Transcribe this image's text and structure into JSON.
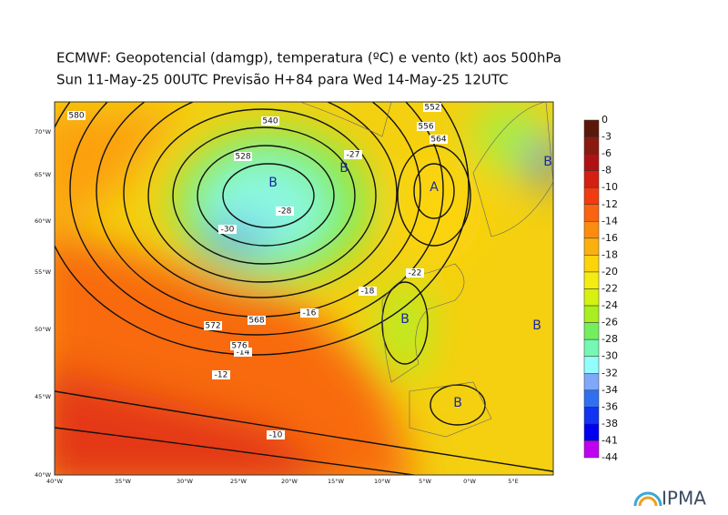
{
  "header": {
    "title_line1": "ECMWF:  Geopotencial (damgp), temperatura (ºC) e vento (kt) aos 500hPa",
    "title_line2": "Sun 11-May-25 00UTC Previsão H+84 para Wed 14-May-25 12UTC"
  },
  "colorbar": {
    "levels": [
      0,
      -3,
      -6,
      -8,
      -10,
      -12,
      -14,
      -16,
      -18,
      -20,
      -22,
      -24,
      -26,
      -28,
      -30,
      -32,
      -34,
      -36,
      -38,
      -41,
      -44
    ],
    "colors": [
      "#5a1808",
      "#8a1a10",
      "#b01212",
      "#d42010",
      "#f03c10",
      "#f86410",
      "#fc8c10",
      "#fcb010",
      "#fcd40c",
      "#f4ec10",
      "#d6f010",
      "#a8ee20",
      "#74ee60",
      "#74f8b4",
      "#94fcfc",
      "#80a8f8",
      "#3070f0",
      "#1034f0",
      "#0000f0",
      "#c000f0"
    ]
  },
  "map": {
    "lon_labels": [
      "40°W",
      "35°W",
      "30°W",
      "25°W",
      "20°W",
      "15°W",
      "10°W",
      "5°W",
      "0°W",
      "5°E"
    ],
    "lat_labels": [
      "70°W",
      "65°W",
      "60°W",
      "55°W",
      "50°W",
      "45°W",
      "40°W"
    ],
    "pressure_centers": [
      "B",
      "B",
      "A",
      "B",
      "B",
      "B",
      "B"
    ],
    "contour_labels": [
      "580",
      "552",
      "540",
      "528",
      "-28",
      "-30",
      "-27",
      "-22",
      "-18",
      "-16",
      "-14",
      "-12",
      "-10",
      "572",
      "564",
      "556",
      "568",
      "576"
    ]
  },
  "logo": "IPMA"
}
